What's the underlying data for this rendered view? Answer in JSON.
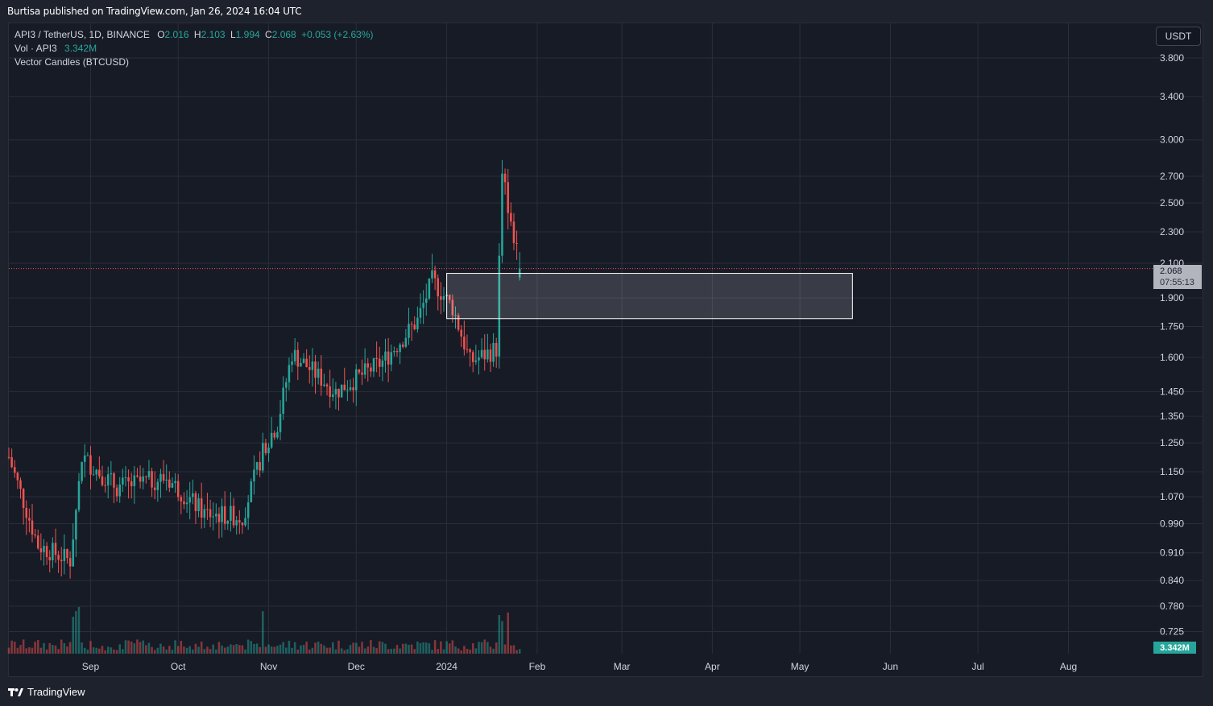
{
  "header": {
    "published": "Burtisa published on TradingView.com, Jan 26, 2024 16:04 UTC"
  },
  "legend": {
    "symbol": "API3 / TetherUS, 1D, BINANCE",
    "o_label": "O",
    "o": "2.016",
    "h_label": "H",
    "h": "2.103",
    "l_label": "L",
    "l": "1.994",
    "c_label": "C",
    "c": "2.068",
    "change": "+0.053 (+2.63%)",
    "vol_label": "Vol · API3",
    "vol": "3.342M",
    "indicator": "Vector Candles (BTCUSD)"
  },
  "currency_button": "USDT",
  "price_tag": {
    "price": "2.068",
    "countdown": "07:55:13"
  },
  "volume_tag": "3.342M",
  "footer": {
    "brand": "TradingView"
  },
  "colors": {
    "up": "#26a69a",
    "down": "#ef5350",
    "bg": "#171b26",
    "grid": "#2a2e39",
    "zone": "#ffffff"
  },
  "chart_data": {
    "type": "candlestick",
    "title": "API3 / TetherUS, 1D, BINANCE",
    "y_scale": "log",
    "ylim": [
      0.68,
      4.2
    ],
    "y_ticks": [
      3.8,
      3.4,
      3.0,
      2.7,
      2.5,
      2.3,
      2.1,
      1.9,
      1.75,
      1.6,
      1.45,
      1.35,
      1.25,
      1.15,
      1.07,
      0.99,
      0.91,
      0.84,
      0.78,
      0.725
    ],
    "y_tick_labels": [
      "3.800",
      "3.400",
      "3.000",
      "2.700",
      "2.500",
      "2.300",
      "2.100",
      "1.900",
      "1.750",
      "1.600",
      "1.450",
      "1.350",
      "1.250",
      "1.150",
      "1.070",
      "0.990",
      "0.910",
      "0.840",
      "0.780",
      "0.725"
    ],
    "x_labels": [
      "Sep",
      "Oct",
      "Nov",
      "Dec",
      "2024",
      "Feb",
      "Mar",
      "Apr",
      "May",
      "Jun",
      "Jul",
      "Aug"
    ],
    "x_label_dates": [
      "2023-09-01",
      "2023-10-01",
      "2023-11-01",
      "2023-12-01",
      "2024-01-01",
      "2024-02-01",
      "2024-03-01",
      "2024-04-01",
      "2024-05-01",
      "2024-06-01",
      "2024-07-01",
      "2024-08-01"
    ],
    "x_range": [
      "2023-08-04",
      "2024-08-29"
    ],
    "last_price": 2.068,
    "zone": {
      "from": "2024-01-01",
      "to": "2024-05-19",
      "top": 2.04,
      "bottom": 1.79
    },
    "key_points": [
      {
        "date": "2023-08-04",
        "close": 1.2
      },
      {
        "date": "2023-08-14",
        "close": 0.93
      },
      {
        "date": "2023-08-25",
        "close": 0.89
      },
      {
        "date": "2023-08-29",
        "close": 1.2
      },
      {
        "date": "2023-09-10",
        "close": 1.1
      },
      {
        "date": "2023-09-27",
        "close": 1.13
      },
      {
        "date": "2023-10-10",
        "close": 1.02
      },
      {
        "date": "2023-10-23",
        "close": 1.01
      },
      {
        "date": "2023-10-31",
        "close": 1.25
      },
      {
        "date": "2023-11-04",
        "close": 1.32
      },
      {
        "date": "2023-11-09",
        "close": 1.62
      },
      {
        "date": "2023-11-24",
        "close": 1.45
      },
      {
        "date": "2023-12-10",
        "close": 1.58
      },
      {
        "date": "2023-12-22",
        "close": 1.78
      },
      {
        "date": "2023-12-27",
        "close": 2.0
      },
      {
        "date": "2024-01-03",
        "close": 1.85
      },
      {
        "date": "2024-01-09",
        "close": 1.58
      },
      {
        "date": "2024-01-18",
        "close": 1.64
      },
      {
        "date": "2024-01-20",
        "close": 2.72
      },
      {
        "date": "2024-01-23",
        "close": 2.38
      },
      {
        "date": "2024-01-26",
        "close": 2.068
      }
    ],
    "volume": {
      "last": 3.342,
      "unit": "M"
    }
  }
}
